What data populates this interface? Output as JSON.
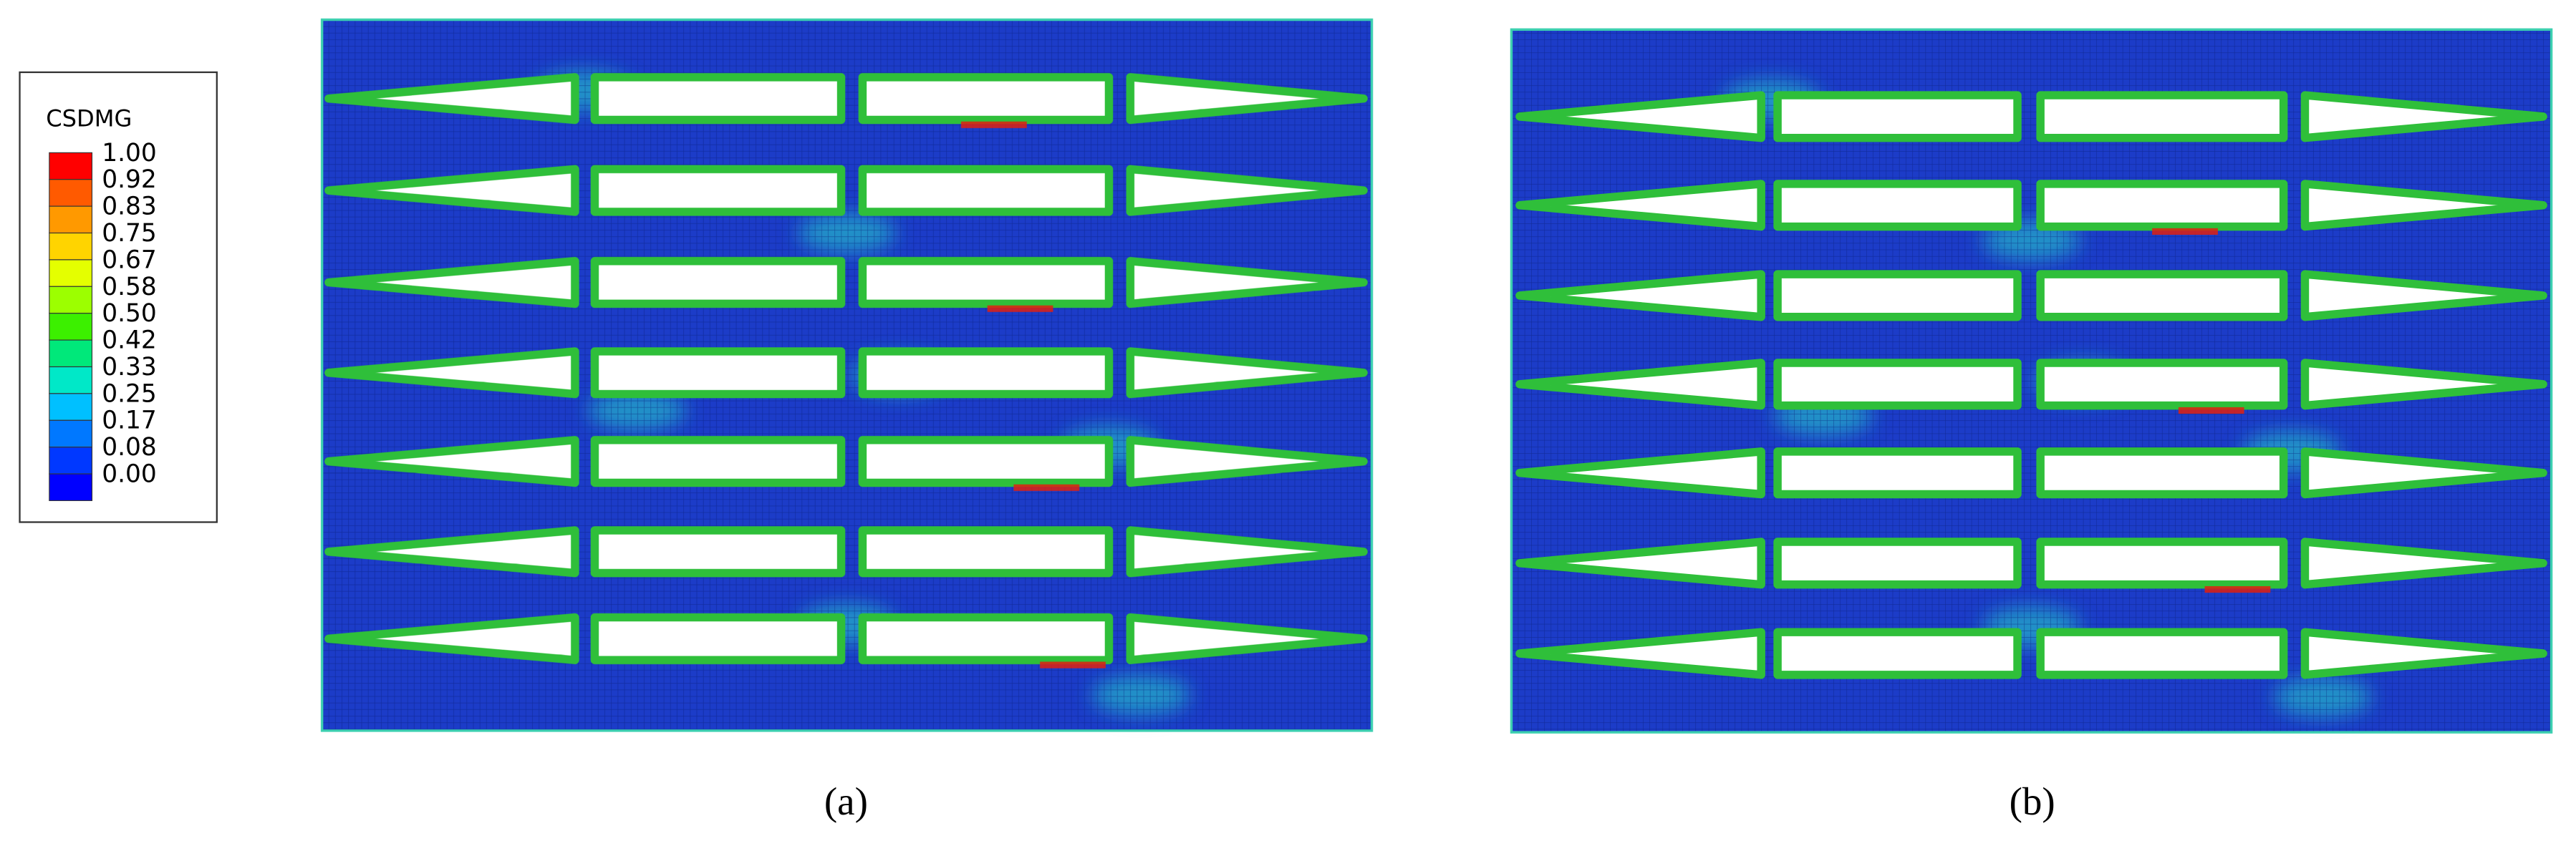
{
  "legend": {
    "title": "CSDMG",
    "labels": [
      "1.00",
      "0.92",
      "0.83",
      "0.75",
      "0.67",
      "0.58",
      "0.50",
      "0.42",
      "0.33",
      "0.25",
      "0.17",
      "0.08",
      "0.00"
    ],
    "colors": [
      "#ff0000",
      "#ff5a00",
      "#ff9900",
      "#ffd400",
      "#e4ff00",
      "#9cff00",
      "#3cf000",
      "#00e87a",
      "#00e8c8",
      "#00c0ff",
      "#0078ff",
      "#0038ff",
      "#0000ff"
    ]
  },
  "panels": [
    {
      "caption": "(a)"
    },
    {
      "caption": "(b)"
    }
  ]
}
